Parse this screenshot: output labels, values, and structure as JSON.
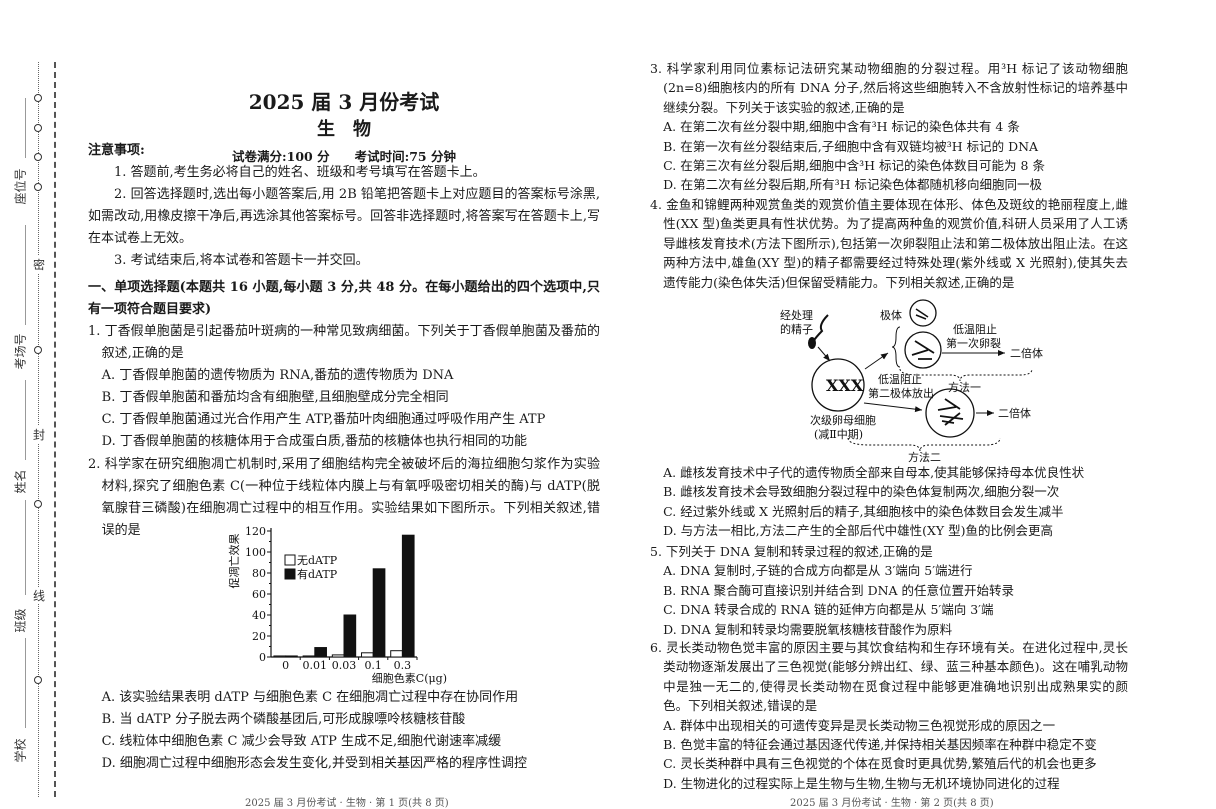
{
  "margin": {
    "labels": [
      "座位号",
      "考场号",
      "姓名",
      "班级",
      "学校"
    ],
    "seal_chars": [
      "密",
      "封",
      "线"
    ]
  },
  "header": {
    "title": "2025 届 3 月份考试",
    "subject": "生　物",
    "info": "试卷满分:100 分　　考试时间:75 分钟"
  },
  "notes": {
    "heading": "注意事项:",
    "items": [
      "1. 答题前,考生务必将自己的姓名、班级和考号填写在答题卡上。",
      "2. 回答选择题时,选出每小题答案后,用 2B 铅笔把答题卡上对应题目的答案标号涂黑,如需改动,用橡皮擦干净后,再选涂其他答案标号。回答非选择题时,将答案写在答题卡上,写在本试卷上无效。",
      "3. 考试结束后,将本试卷和答题卡一并交回。"
    ]
  },
  "section": "一、单项选择题(本题共 16 小题,每小题 3 分,共 48 分。在每小题给出的四个选项中,只有一项符合题目要求)",
  "questions": [
    {
      "stem": "1. 丁香假单胞菌是引起番茄叶斑病的一种常见致病细菌。下列关于丁香假单胞菌及番茄的叙述,正确的是",
      "options": [
        "A. 丁香假单胞菌的遗传物质为 RNA,番茄的遗传物质为 DNA",
        "B. 丁香假单胞菌和番茄均含有细胞壁,且细胞壁成分完全相同",
        "C. 丁香假单胞菌通过光合作用产生 ATP,番茄叶肉细胞通过呼吸作用产生 ATP",
        "D. 丁香假单胞菌的核糖体用于合成蛋白质,番茄的核糖体也执行相同的功能"
      ]
    },
    {
      "stem": "2. 科学家在研究细胞凋亡机制时,采用了细胞结构完全被破坏后的海拉细胞匀浆作为实验材料,探究了细胞色素 C(一种位于线粒体内膜上与有氧呼吸密切相关的酶)与 dATP(脱氧腺苷三磷酸)在细胞凋亡过程中的相互作用。实验结果如下图所示。下列相关叙述,错误的是",
      "options": [
        "A. 该实验结果表明 dATP 与细胞色素 C 在细胞凋亡过程中存在协同作用",
        "B. 当 dATP 分子脱去两个磷酸基团后,可形成腺嘌呤核糖核苷酸",
        "C. 线粒体中细胞色素 C 减少会导致 ATP 生成不足,细胞代谢速率减缓",
        "D. 细胞凋亡过程中细胞形态会发生变化,并受到相关基因严格的程序性调控"
      ]
    },
    {
      "stem": "3. 科学家利用同位素标记法研究某动物细胞的分裂过程。用³H 标记了该动物细胞(2n=8)细胞核内的所有 DNA 分子,然后将这些细胞转入不含放射性标记的培养基中继续分裂。下列关于该实验的叙述,正确的是",
      "options": [
        "A. 在第二次有丝分裂中期,细胞中含有³H 标记的染色体共有 4 条",
        "B. 在第一次有丝分裂结束后,子细胞中含有双链均被³H 标记的 DNA",
        "C. 在第三次有丝分裂后期,细胞中含³H 标记的染色体数目可能为 8 条",
        "D. 在第二次有丝分裂后期,所有³H 标记染色体都随机移向细胞同一极"
      ]
    },
    {
      "stem": "4. 金鱼和锦鲤两种观赏鱼类的观赏价值主要体现在体形、体色及斑纹的艳丽程度上,雌性(XX 型)鱼类更具有性状优势。为了提高两种鱼的观赏价值,科研人员采用了人工诱导雌核发育技术(方法下图所示),包括第一次卵裂阻止法和第二极体放出阻止法。在这两种方法中,雄鱼(XY 型)的精子都需要经过特殊处理(紫外线或 X 光照射),使其失去遗传能力(染色体失活)但保留受精能力。下列相关叙述,正确的是",
      "options": [
        "A. 雌核发育技术中子代的遗传物质全部来自母本,使其能够保持母本优良性状",
        "B. 雌核发育技术会导致细胞分裂过程中的染色体复制两次,细胞分裂一次",
        "C. 经过紫外线或 X 光照射后的精子,其细胞核中的染色体数目会发生减半",
        "D. 与方法一相比,方法二产生的全部后代中雄性(XY 型)鱼的比例会更高"
      ]
    },
    {
      "stem": "5. 下列关于 DNA 复制和转录过程的叙述,正确的是",
      "options": [
        "A. DNA 复制时,子链的合成方向都是从 3′端向 5′端进行",
        "B. RNA 聚合酶可直接识别并结合到 DNA 的任意位置开始转录",
        "C. DNA 转录合成的 RNA 链的延伸方向都是从 5′端向 3′端",
        "D. DNA 复制和转录均需要脱氧核糖核苷酸作为原料"
      ]
    },
    {
      "stem": "6. 灵长类动物色觉丰富的原因主要与其饮食结构和生存环境有关。在进化过程中,灵长类动物逐渐发展出了三色视觉(能够分辨出红、绿、蓝三种基本颜色)。这在哺乳动物中是独一无二的,使得灵长类动物在觅食过程中能够更准确地识别出成熟果实的颜色。下列相关叙述,错误的是",
      "options": [
        "A. 群体中出现相关的可遗传变异是灵长类动物三色视觉形成的原因之一",
        "B. 色觉丰富的特征会通过基因逐代传递,并保持相关基因频率在种群中稳定不变",
        "C. 灵长类种群中具有三色视觉的个体在觅食时更具优势,繁殖后代的机会也更多",
        "D. 生物进化的过程实际上是生物与生物,生物与无机环境协同进化的过程"
      ]
    }
  ],
  "chart_data": {
    "type": "bar",
    "categories": [
      "0",
      "0.01",
      "0.03",
      "0.1",
      "0.3"
    ],
    "series": [
      {
        "name": "无dATP",
        "values": [
          1,
          1,
          2,
          4,
          6
        ],
        "color": "#ffffff"
      },
      {
        "name": "有dATP",
        "values": [
          1,
          9,
          40,
          84,
          116
        ],
        "color": "#111111"
      }
    ],
    "xlabel": "细胞色素C(μg)",
    "ylabel": "促凋亡效果",
    "ylim": [
      0,
      120
    ],
    "yticks": [
      0,
      20,
      40,
      60,
      80,
      100,
      120
    ],
    "grid": false,
    "legend_position": "top-left"
  },
  "diagram": {
    "sperm_label": [
      "经处理",
      "的精子"
    ],
    "polar_body": "极体",
    "method1_step": [
      "低温阻止",
      "第一次卵裂"
    ],
    "method2_step": [
      "低温阻止",
      "第二极体放出"
    ],
    "oocyte_label": [
      "次级卵母细胞",
      "(减Ⅱ中期)"
    ],
    "result": "二倍体",
    "method1": "方法一",
    "method2": "方法二"
  },
  "footer": {
    "left": "2025 届 3 月份考试 · 生物 · 第 1 页(共 8 页)",
    "right": "2025 届 3 月份考试 · 生物 · 第 2 页(共 8 页)"
  }
}
